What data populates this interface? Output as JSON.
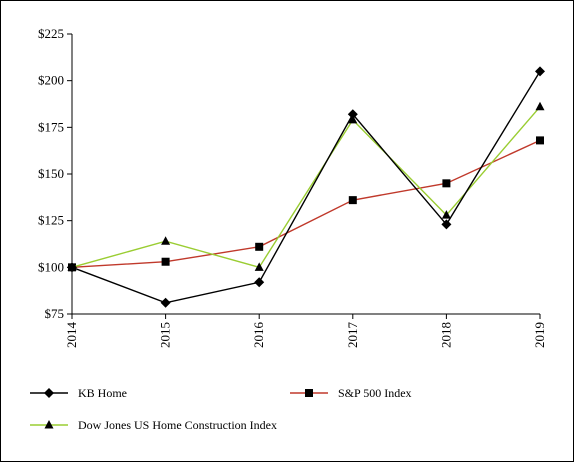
{
  "chart_data": {
    "type": "line",
    "title": "",
    "xlabel": "",
    "ylabel": "",
    "x": [
      "2014",
      "2015",
      "2016",
      "2017",
      "2018",
      "2019"
    ],
    "ylim": [
      75,
      225
    ],
    "yticks": [
      75,
      100,
      125,
      150,
      175,
      200,
      225
    ],
    "ytick_labels": [
      "$75",
      "$100",
      "$125",
      "$150",
      "$175",
      "$200",
      "$225"
    ],
    "grid": false,
    "legend_position": "bottom",
    "series": [
      {
        "name": "KB Home",
        "values": [
          100,
          81,
          92,
          182,
          123,
          205
        ],
        "color": "#000000",
        "marker": "diamond"
      },
      {
        "name": "S&P 500 Index",
        "values": [
          100,
          103,
          111,
          136,
          145,
          168
        ],
        "color": "#c0392b",
        "marker": "square"
      },
      {
        "name": "Dow Jones US Home Construction Index",
        "values": [
          100,
          114,
          100,
          179,
          128,
          186
        ],
        "color": "#9acd32",
        "marker": "triangle"
      }
    ]
  }
}
